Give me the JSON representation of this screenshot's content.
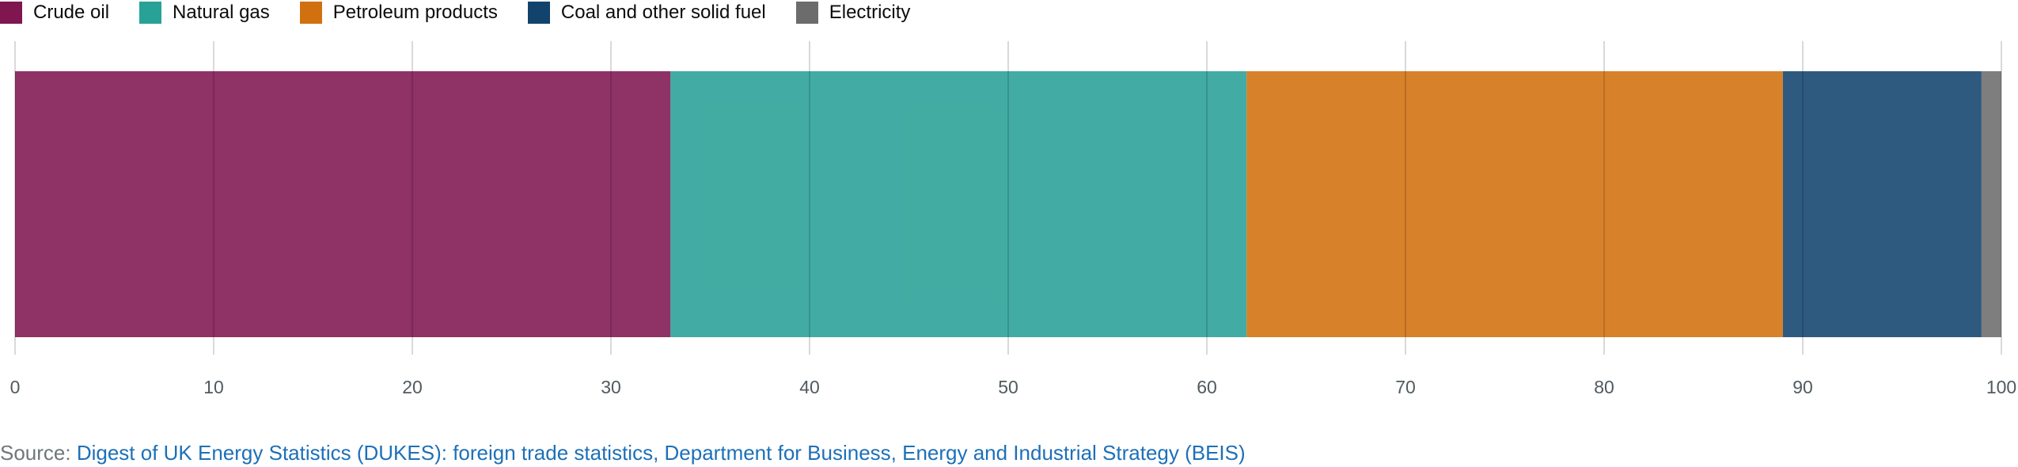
{
  "chart_data": {
    "type": "bar",
    "orientation": "horizontal",
    "stacked": true,
    "categories": [
      ""
    ],
    "series": [
      {
        "name": "Crude oil",
        "values": [
          33.0
        ],
        "color": "#801650"
      },
      {
        "name": "Natural gas",
        "values": [
          29.0
        ],
        "color": "#28a197"
      },
      {
        "name": "Petroleum products",
        "values": [
          27.0
        ],
        "color": "#d1700e"
      },
      {
        "name": "Coal and other solid fuel",
        "values": [
          10.0
        ],
        "color": "#12436d"
      },
      {
        "name": "Electricity",
        "values": [
          1.0
        ],
        "color": "#6c6c6c"
      }
    ],
    "xlim": [
      0,
      100
    ],
    "xticks": [
      "0",
      "10",
      "20",
      "30",
      "40",
      "50",
      "60",
      "70",
      "80",
      "90",
      "100"
    ],
    "grid": true,
    "legend_position": "top-left"
  },
  "source": {
    "prefix": "Source: ",
    "link_text": "Digest of UK Energy Statistics (DUKES): foreign trade statistics, Department for Business, Energy and Industrial Strategy (BEIS)"
  }
}
